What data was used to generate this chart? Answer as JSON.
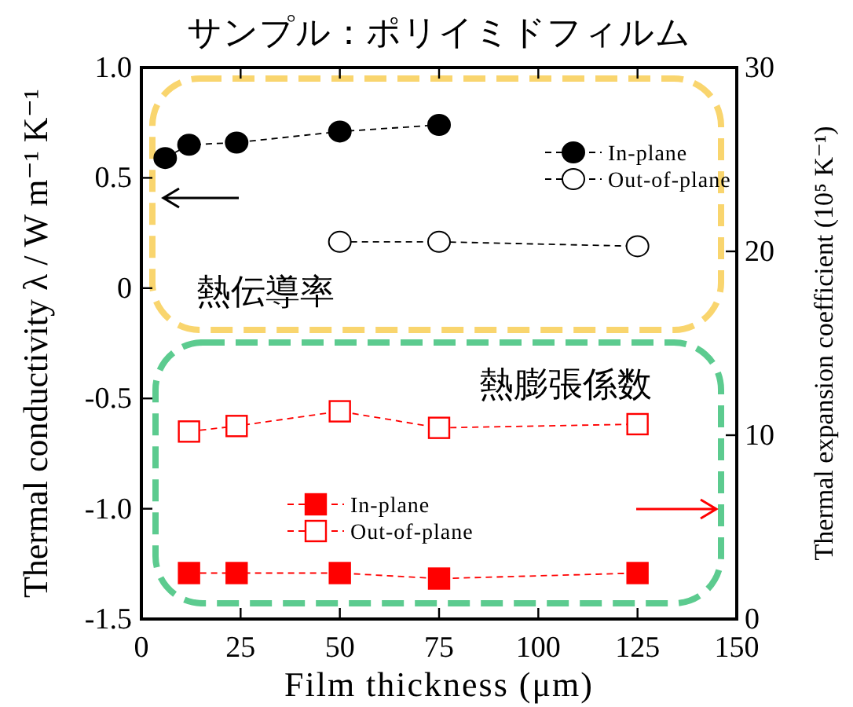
{
  "chart_data": {
    "type": "line",
    "title": "サンプル：ポリイミドフィルム",
    "xlabel": "Film thickness (μm)",
    "ylabel": "Thermal conductivity   λ / W m⁻¹ K⁻¹",
    "y2label": "Thermal expansion coefficient (10⁵ K⁻¹)",
    "annotations": [
      "熱伝導率",
      "熱膨張係数"
    ],
    "xlim": [
      0,
      150
    ],
    "xticks": [
      0,
      25,
      50,
      75,
      100,
      125,
      150
    ],
    "ylim": [
      -1.5,
      1.0
    ],
    "yticks": [
      {
        "value": 1.0,
        "label": "1.0"
      },
      0.5,
      0,
      {
        "value": -0.5,
        "label": "-0.5"
      },
      {
        "value": -1.0,
        "label": "-1.0"
      },
      {
        "value": -1.5,
        "label": "-1.5"
      }
    ],
    "y2lim": [
      0,
      30
    ],
    "y2ticks": [
      0,
      10,
      20,
      30
    ],
    "legend": "right",
    "line_style": "dashed",
    "grid": false,
    "series": [
      {
        "name": "In-plane",
        "color": "#000000",
        "marker": "circle",
        "x": [
          6,
          12,
          24,
          50,
          75
        ],
        "values": [
          0.59,
          0.65,
          0.66,
          0.71,
          0.74
        ]
      },
      {
        "name": "Out-of-plane",
        "color": "#000000",
        "marker": "circle",
        "x": [
          50,
          75,
          125
        ],
        "values": [
          0.21,
          0.21,
          0.19
        ]
      },
      {
        "name": "In-plane",
        "color": "#ff0000",
        "marker": "square",
        "axis": "y2",
        "x": [
          12,
          24,
          50,
          75,
          125
        ],
        "values": [
          2.5,
          2.5,
          2.5,
          2.2,
          2.5
        ]
      },
      {
        "name": "Out-of-plane",
        "color": "#ff0000",
        "marker": "square",
        "axis": "y2",
        "x": [
          12,
          24,
          50,
          75,
          125
        ],
        "values": [
          10.2,
          10.5,
          11.3,
          10.4,
          10.6
        ]
      }
    ]
  }
}
